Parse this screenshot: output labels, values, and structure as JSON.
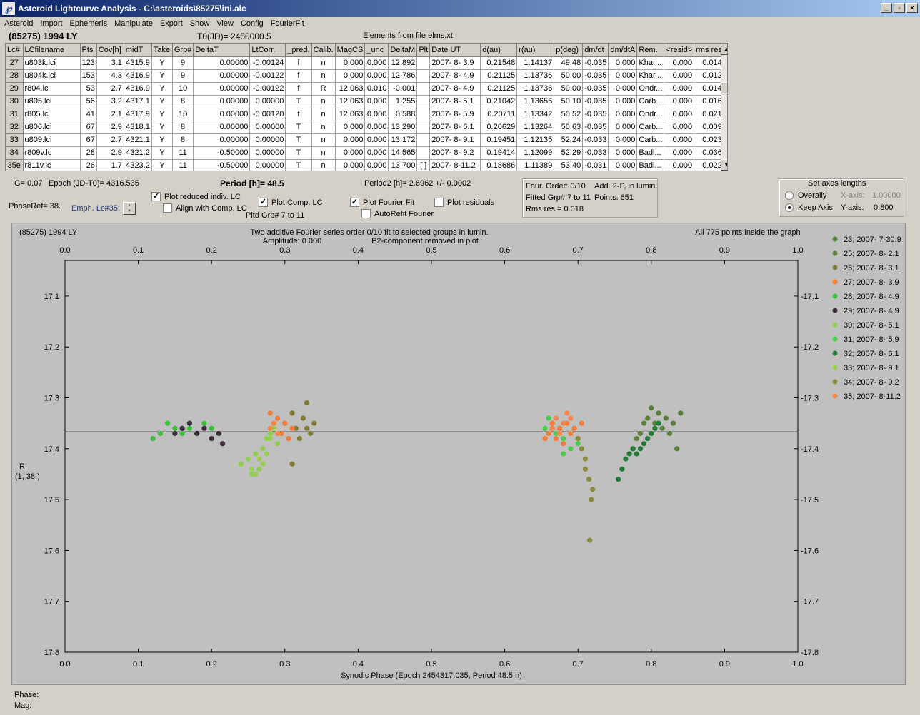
{
  "window": {
    "title": "Asteroid Lightcurve Analysis - C:\\asteroids\\85275\\ini.alc",
    "icon": "app-logo-icon"
  },
  "menu": [
    "Asteroid",
    "Import",
    "Ephemeris",
    "Manipulate",
    "Export",
    "Show",
    "View",
    "Config",
    "FourierFit"
  ],
  "header": {
    "object": "(85275) 1994 LY",
    "t0": "T0(JD)= 2450000.5",
    "elements": "Elements from file elms.xt"
  },
  "table": {
    "columns": [
      "Lc#",
      "LCfilename",
      "Pts",
      "Cov[h]",
      "midT",
      "Take",
      "Grp#",
      "DeltaT",
      "LtCorr.",
      "_pred.",
      "Calib.",
      "MagCS",
      "_unc",
      "DeltaM",
      "Plt",
      "Date UT",
      "d(au)",
      "r(au)",
      "p(deg)",
      "dm/dt",
      "dm/dtA",
      "Rem.",
      "<resid>",
      "rms res"
    ],
    "rows": [
      [
        "27",
        "u803k.lci",
        "123",
        "3.1",
        "4315.9",
        "Y",
        "9",
        "0.00000",
        "-0.00124",
        "f",
        "n",
        "0.000",
        "0.000",
        "12.892",
        "",
        "2007- 8- 3.9",
        "0.21548",
        "1.14137",
        "49.48",
        "-0.035",
        "0.000",
        "Khar...",
        "0.000",
        "0.014"
      ],
      [
        "28",
        "u804k.lci",
        "153",
        "4.3",
        "4316.9",
        "Y",
        "9",
        "0.00000",
        "-0.00122",
        "f",
        "n",
        "0.000",
        "0.000",
        "12.786",
        "",
        "2007- 8- 4.9",
        "0.21125",
        "1.13736",
        "50.00",
        "-0.035",
        "0.000",
        "Khar...",
        "0.000",
        "0.012"
      ],
      [
        "29",
        "r804.lc",
        "53",
        "2.7",
        "4316.9",
        "Y",
        "10",
        "0.00000",
        "-0.00122",
        "f",
        "R",
        "12.063",
        "0.010",
        "-0.001",
        "",
        "2007- 8- 4.9",
        "0.21125",
        "1.13736",
        "50.00",
        "-0.035",
        "0.000",
        "Ondr...",
        "0.000",
        "0.014"
      ],
      [
        "30",
        "u805.lci",
        "56",
        "3.2",
        "4317.1",
        "Y",
        "8",
        "0.00000",
        "0.00000",
        "T",
        "n",
        "12.063",
        "0.000",
        "1.255",
        "",
        "2007- 8- 5.1",
        "0.21042",
        "1.13656",
        "50.10",
        "-0.035",
        "0.000",
        "Carb...",
        "0.000",
        "0.016"
      ],
      [
        "31",
        "r805.lc",
        "41",
        "2.1",
        "4317.9",
        "Y",
        "10",
        "0.00000",
        "-0.00120",
        "f",
        "n",
        "12.063",
        "0.000",
        "0.588",
        "",
        "2007- 8- 5.9",
        "0.20711",
        "1.13342",
        "50.52",
        "-0.035",
        "0.000",
        "Ondr...",
        "0.000",
        "0.021"
      ],
      [
        "32",
        "u806.lci",
        "67",
        "2.9",
        "4318.1",
        "Y",
        "8",
        "0.00000",
        "0.00000",
        "T",
        "n",
        "0.000",
        "0.000",
        "13.290",
        "",
        "2007- 8- 6.1",
        "0.20629",
        "1.13264",
        "50.63",
        "-0.035",
        "0.000",
        "Carb...",
        "0.000",
        "0.009"
      ],
      [
        "33",
        "u809.lci",
        "67",
        "2.7",
        "4321.1",
        "Y",
        "8",
        "0.00000",
        "0.00000",
        "T",
        "n",
        "0.000",
        "0.000",
        "13.172",
        "",
        "2007- 8- 9.1",
        "0.19451",
        "1.12135",
        "52.24",
        "-0.033",
        "0.000",
        "Carb...",
        "0.000",
        "0.023"
      ],
      [
        "34",
        "r809v.lc",
        "28",
        "2.9",
        "4321.2",
        "Y",
        "11",
        "-0.50000",
        "0.00000",
        "T",
        "n",
        "0.000",
        "0.000",
        "14.565",
        "",
        "2007- 8- 9.2",
        "0.19414",
        "1.12099",
        "52.29",
        "-0.033",
        "0.000",
        "Badl...",
        "0.000",
        "0.036"
      ],
      [
        "35e",
        "r811v.lc",
        "26",
        "1.7",
        "4323.2",
        "Y",
        "11",
        "-0.50000",
        "0.00000",
        "T",
        "n",
        "0.000",
        "0.000",
        "13.700",
        "[ ]",
        "2007- 8-11.2",
        "0.18686",
        "1.11389",
        "53.40",
        "-0.031",
        "0.000",
        "Badl...",
        "0.000",
        "0.022"
      ]
    ]
  },
  "controls": {
    "g": "G= 0.07",
    "epoch": "Epoch (JD-T0)= 4316.535",
    "period": "Period [h]= 48.5",
    "period2": "Period2 [h]= 2.6962 +/- 0.0002",
    "phaseref": "PhaseRef= 38.",
    "emph": "Emph. Lc#35:",
    "cb_reduced": "Plot reduced indiv. LC",
    "cb_align": "Align with Comp. LC",
    "cb_comp": "Plot Comp. LC",
    "pltd": "Pltd Grp#  7  to  11",
    "cb_fourier": "Plot Fourier Fit",
    "cb_autorefit": "AutoRefit Fourier",
    "cb_resid": "Plot residuals",
    "four_order": "Four. Order:  0/10",
    "add": "Add. 2-P, in lumin.",
    "fitted": "Fitted Grp# 7 to 11",
    "points": "Points: 651",
    "rms": "Rms res     = 0.018",
    "axes_title": "Set axes lengths",
    "overally": "Overally",
    "keepaxis": "Keep Axis",
    "xaxis": "X-axis:",
    "xval": "1.00000",
    "yaxis": "Y-axis:",
    "yval": "0.800"
  },
  "plot": {
    "title_left": "(85275) 1994 LY",
    "title_center1": "Two additive Fourier series order 0/10 fit to selected groups in lumin.",
    "title_center2": "Amplitude: 0.000",
    "title_center3": "P2-component removed in plot",
    "title_right": "All 775 points inside the graph",
    "ylabel1": "R",
    "ylabel2": "(1, 38.)",
    "xlabel": "Synodic Phase (Epoch 2454317.035, Period 48.5 h)",
    "fit_mag": 17.367
  },
  "chart_data": {
    "type": "scatter",
    "xlim": [
      0,
      1
    ],
    "ylim": [
      17.8,
      17.03
    ],
    "y_inverted": true,
    "xticks": [
      "0.0",
      "0.1",
      "0.2",
      "0.3",
      "0.4",
      "0.5",
      "0.6",
      "0.7",
      "0.8",
      "0.9",
      "1.0"
    ],
    "yticks": [
      "17.1",
      "17.2",
      "17.3",
      "17.4",
      "17.5",
      "17.6",
      "17.7",
      "17.8"
    ],
    "fit_line": 17.367,
    "series": [
      {
        "name": "23; 2007- 7-30.9",
        "color": "#4e7d3c",
        "points": []
      },
      {
        "name": "25; 2007- 8- 2.1",
        "color": "#5a7f3a",
        "points": [
          [
            0.775,
            17.4
          ],
          [
            0.78,
            17.38
          ],
          [
            0.785,
            17.37
          ],
          [
            0.79,
            17.35
          ],
          [
            0.795,
            17.34
          ],
          [
            0.8,
            17.32
          ],
          [
            0.805,
            17.35
          ],
          [
            0.81,
            17.33
          ],
          [
            0.815,
            17.36
          ],
          [
            0.82,
            17.34
          ],
          [
            0.825,
            17.37
          ],
          [
            0.83,
            17.35
          ],
          [
            0.835,
            17.4
          ],
          [
            0.84,
            17.33
          ]
        ]
      },
      {
        "name": "26; 2007- 8- 3.1",
        "color": "#7f7a33",
        "points": [
          [
            0.3,
            17.35
          ],
          [
            0.31,
            17.33
          ],
          [
            0.315,
            17.36
          ],
          [
            0.32,
            17.38
          ],
          [
            0.325,
            17.34
          ],
          [
            0.33,
            17.31
          ],
          [
            0.33,
            17.36
          ],
          [
            0.335,
            17.37
          ],
          [
            0.34,
            17.35
          ],
          [
            0.31,
            17.43
          ]
        ]
      },
      {
        "name": "27; 2007- 8- 3.9",
        "color": "#f07d3a",
        "points": [
          [
            0.28,
            17.33
          ],
          [
            0.285,
            17.36
          ],
          [
            0.29,
            17.34
          ],
          [
            0.295,
            17.37
          ],
          [
            0.3,
            17.35
          ],
          [
            0.305,
            17.38
          ],
          [
            0.31,
            17.36
          ],
          [
            0.655,
            17.38
          ],
          [
            0.66,
            17.37
          ],
          [
            0.665,
            17.35
          ],
          [
            0.67,
            17.38
          ],
          [
            0.675,
            17.36
          ],
          [
            0.68,
            17.39
          ],
          [
            0.685,
            17.35
          ],
          [
            0.69,
            17.37
          ],
          [
            0.695,
            17.36
          ],
          [
            0.7,
            17.38
          ],
          [
            0.705,
            17.35
          ]
        ]
      },
      {
        "name": "28; 2007- 8- 4.9",
        "color": "#3dbd3d",
        "points": [
          [
            0.12,
            17.38
          ],
          [
            0.13,
            17.37
          ],
          [
            0.14,
            17.35
          ],
          [
            0.15,
            17.36
          ],
          [
            0.16,
            17.37
          ],
          [
            0.17,
            17.36
          ],
          [
            0.18,
            17.37
          ],
          [
            0.19,
            17.35
          ],
          [
            0.2,
            17.36
          ]
        ]
      },
      {
        "name": "29; 2007- 8- 4.9",
        "color": "#3a2a3a",
        "points": [
          [
            0.15,
            17.37
          ],
          [
            0.16,
            17.36
          ],
          [
            0.17,
            17.35
          ],
          [
            0.18,
            17.37
          ],
          [
            0.19,
            17.36
          ],
          [
            0.2,
            17.38
          ],
          [
            0.21,
            17.37
          ],
          [
            0.215,
            17.39
          ]
        ]
      },
      {
        "name": "30; 2007- 8- 5.1",
        "color": "#8fce4e",
        "points": [
          [
            0.24,
            17.43
          ],
          [
            0.25,
            17.42
          ],
          [
            0.255,
            17.45
          ],
          [
            0.26,
            17.41
          ],
          [
            0.265,
            17.44
          ],
          [
            0.27,
            17.4
          ],
          [
            0.275,
            17.38
          ],
          [
            0.28,
            17.37
          ],
          [
            0.285,
            17.36
          ],
          [
            0.29,
            17.39
          ]
        ]
      },
      {
        "name": "31; 2007- 8- 5.9",
        "color": "#4ccc4c",
        "points": [
          [
            0.655,
            17.36
          ],
          [
            0.66,
            17.34
          ],
          [
            0.665,
            17.36
          ],
          [
            0.67,
            17.37
          ],
          [
            0.68,
            17.38
          ],
          [
            0.69,
            17.4
          ],
          [
            0.7,
            17.39
          ],
          [
            0.68,
            17.41
          ]
        ]
      },
      {
        "name": "32; 2007- 8- 6.1",
        "color": "#227a36",
        "points": [
          [
            0.755,
            17.46
          ],
          [
            0.76,
            17.44
          ],
          [
            0.765,
            17.42
          ],
          [
            0.77,
            17.41
          ],
          [
            0.775,
            17.4
          ],
          [
            0.78,
            17.41
          ],
          [
            0.785,
            17.4
          ],
          [
            0.79,
            17.39
          ],
          [
            0.795,
            17.38
          ],
          [
            0.8,
            17.37
          ],
          [
            0.805,
            17.36
          ],
          [
            0.81,
            17.35
          ]
        ]
      },
      {
        "name": "33; 2007- 8- 9.1",
        "color": "#9acd55",
        "points": [
          [
            0.255,
            17.44
          ],
          [
            0.26,
            17.45
          ],
          [
            0.265,
            17.42
          ],
          [
            0.27,
            17.43
          ],
          [
            0.275,
            17.41
          ],
          [
            0.28,
            17.38
          ],
          [
            0.285,
            17.36
          ],
          [
            0.29,
            17.37
          ]
        ]
      },
      {
        "name": "34; 2007- 8- 9.2",
        "color": "#8c8a3c",
        "points": [
          [
            0.7,
            17.38
          ],
          [
            0.705,
            17.4
          ],
          [
            0.71,
            17.42
          ],
          [
            0.715,
            17.46
          ],
          [
            0.718,
            17.5
          ],
          [
            0.72,
            17.48
          ],
          [
            0.716,
            17.58
          ],
          [
            0.71,
            17.44
          ]
        ]
      },
      {
        "name": "35; 2007- 8-11.2",
        "color": "#f0884e",
        "points": [
          [
            0.28,
            17.36
          ],
          [
            0.285,
            17.35
          ],
          [
            0.29,
            17.37
          ],
          [
            0.665,
            17.36
          ],
          [
            0.67,
            17.34
          ],
          [
            0.675,
            17.37
          ],
          [
            0.68,
            17.35
          ],
          [
            0.685,
            17.33
          ],
          [
            0.69,
            17.34
          ]
        ]
      }
    ]
  },
  "status": {
    "phase": "Phase:",
    "mag": "Mag:"
  }
}
